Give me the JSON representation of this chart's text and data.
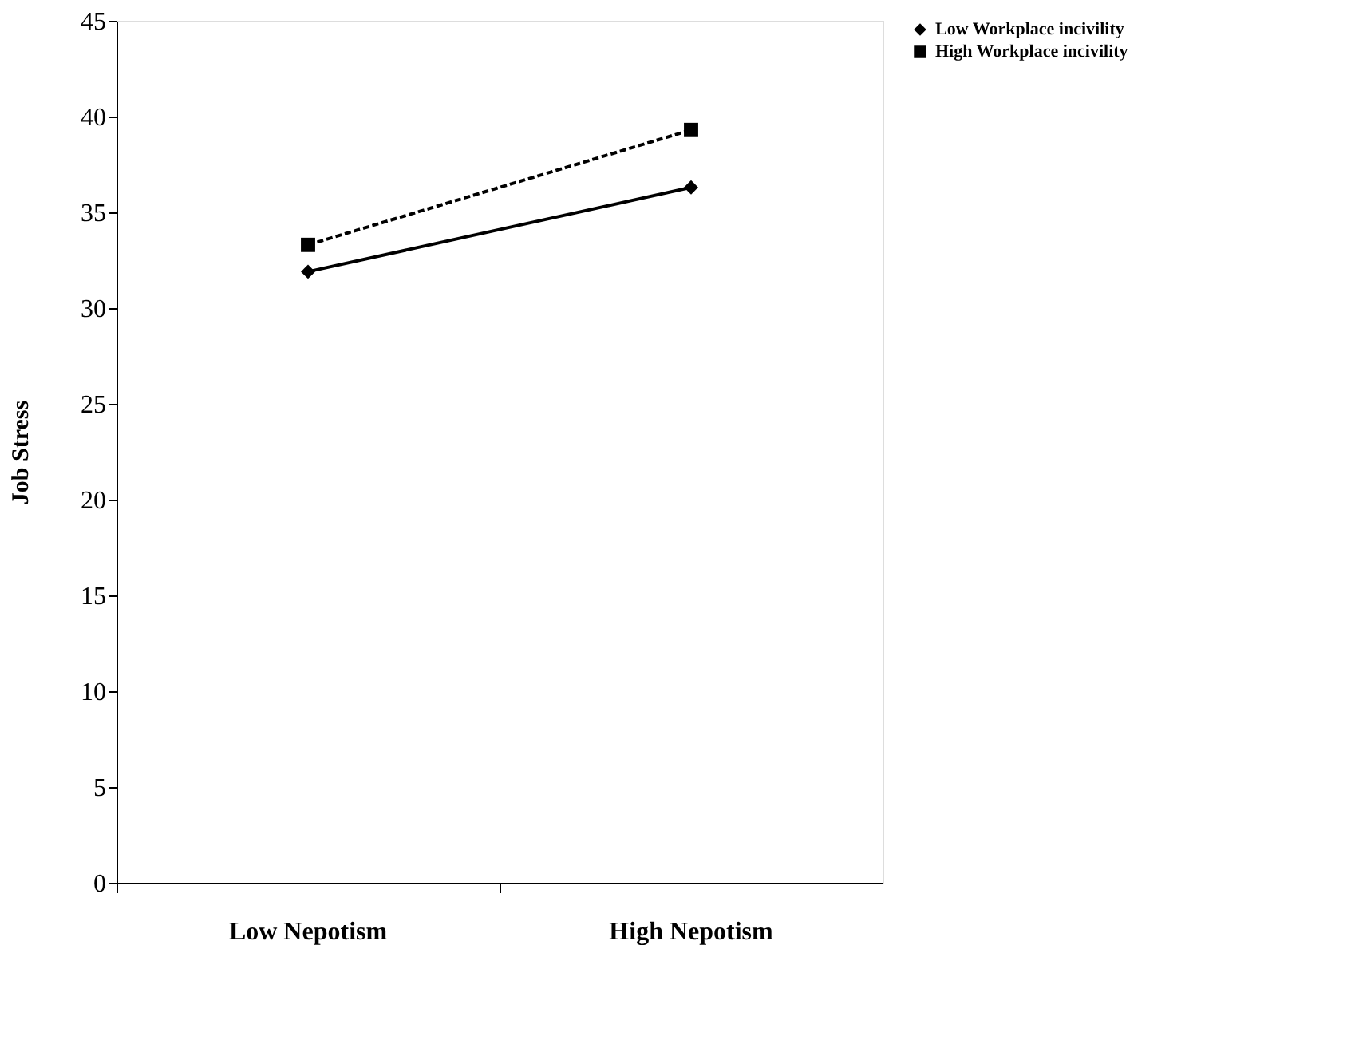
{
  "chart_data": {
    "type": "line",
    "ylabel": "Job Stress",
    "categories": [
      "Low Nepotism",
      "High Nepotism"
    ],
    "series": [
      {
        "name": "Low Workplace incivility",
        "color": "#000000",
        "values": [
          31.9,
          36.3
        ],
        "marker": "diamond",
        "line_style": "solid"
      },
      {
        "name": "High Workplace incivility",
        "color": "#000000",
        "values": [
          33.3,
          39.3
        ],
        "marker": "square",
        "line_style": "dashed"
      }
    ],
    "ylim": [
      0,
      45
    ],
    "yticks": [
      0,
      5,
      10,
      15,
      20,
      25,
      30,
      35,
      40,
      45
    ],
    "grid": false,
    "legend": "right"
  }
}
